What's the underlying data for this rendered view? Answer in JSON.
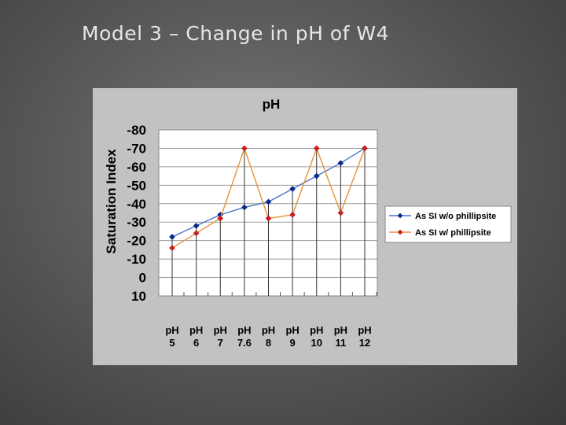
{
  "slide": {
    "title": "Model 3 – Change in pH of W4"
  },
  "chart_data": {
    "type": "line",
    "title": "pH",
    "xlabel": "",
    "ylabel": "Saturation Index",
    "categories": [
      [
        "pH",
        "5"
      ],
      [
        "pH",
        "6"
      ],
      [
        "pH",
        "7"
      ],
      [
        "pH",
        "7.6"
      ],
      [
        "pH",
        "8"
      ],
      [
        "pH",
        "9"
      ],
      [
        "pH",
        "10"
      ],
      [
        "pH",
        "11"
      ],
      [
        "pH",
        "12"
      ]
    ],
    "y_tick_labels": [
      "-80",
      "-70",
      "-60",
      "-50",
      "-40",
      "-30",
      "-20",
      "-10",
      "0",
      "10"
    ],
    "ylim": [
      -80,
      10
    ],
    "grid": true,
    "legend_position": "right",
    "series": [
      {
        "name": "As SI w/o phillipsite",
        "color": "#4a72c4",
        "marker_color": "#0a2a8a",
        "values": [
          -22,
          -28,
          -34,
          -38,
          -41,
          -48,
          -55,
          -62,
          -70
        ]
      },
      {
        "name": "As SI w/ phillipsite",
        "color": "#e8933a",
        "marker_color": "#c81e1e",
        "values": [
          -16,
          -24,
          -32,
          -70,
          -32,
          -34,
          -70,
          -35,
          -70
        ]
      }
    ]
  }
}
